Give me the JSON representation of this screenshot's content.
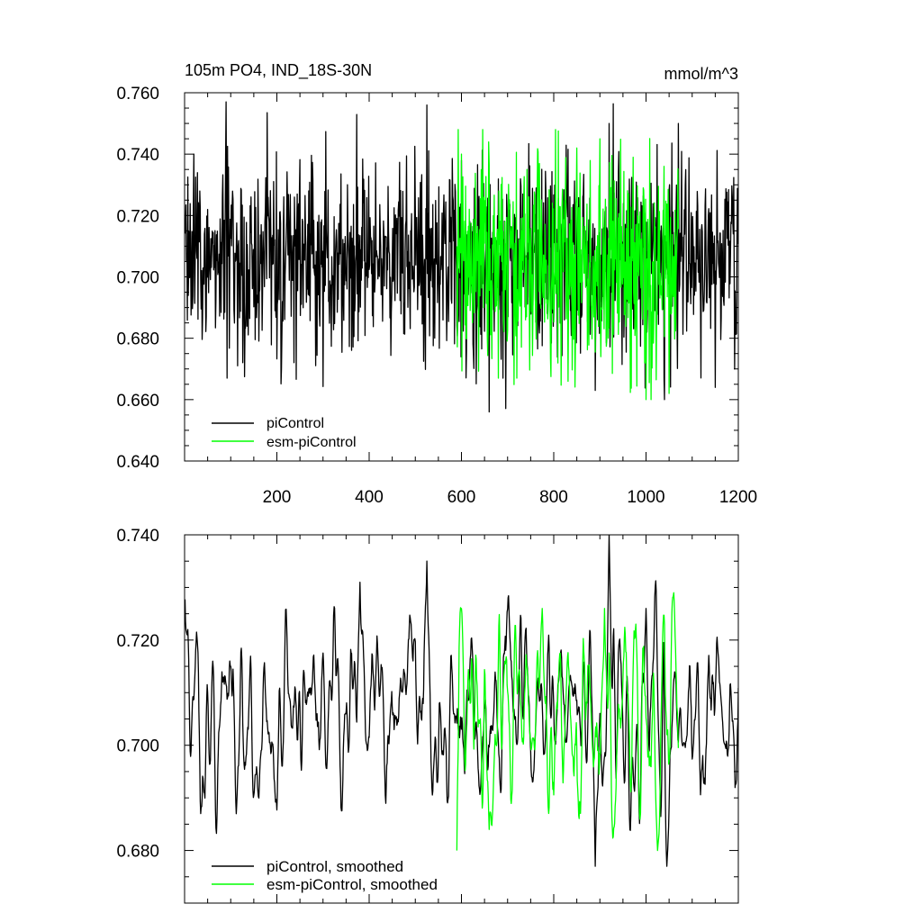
{
  "chart_data": [
    {
      "type": "line",
      "title": "105m PO4, IND_18S-30N",
      "units": "mmol/m^3",
      "xlim": [
        0,
        1200
      ],
      "ylim": [
        0.64,
        0.76
      ],
      "xticks": [
        200,
        400,
        600,
        800,
        1000,
        1200
      ],
      "yticks": [
        0.64,
        0.66,
        0.68,
        0.7,
        0.72,
        0.74,
        0.76
      ],
      "xtick_labels": [
        "200",
        "400",
        "600",
        "800",
        "1000",
        "1200"
      ],
      "ytick_labels": [
        "0.640",
        "0.660",
        "0.680",
        "0.700",
        "0.720",
        "0.740",
        "0.760"
      ],
      "legend_position": "bottom-left",
      "series": [
        {
          "name": "piControl",
          "color": "#000000",
          "x_start": 1,
          "x_end": 1200,
          "mean": 0.706,
          "std": 0.016,
          "min": 0.656,
          "max": 0.757,
          "peaks": [
            [
              90,
              0.757
            ],
            [
              525,
              0.756
            ],
            [
              920,
              0.75
            ],
            [
              1070,
              0.75
            ]
          ],
          "troughs": [
            [
              92,
              0.667
            ],
            [
              115,
              0.671
            ],
            [
              660,
              0.656
            ],
            [
              890,
              0.663
            ],
            [
              1040,
              0.66
            ],
            [
              1150,
              0.664
            ]
          ]
        },
        {
          "name": "esm-piControl",
          "color": "#00ff00",
          "x_start": 590,
          "x_end": 1070,
          "mean": 0.705,
          "std": 0.018,
          "min": 0.66,
          "max": 0.748,
          "peaks": [
            [
              600,
              0.74
            ],
            [
              850,
              0.742
            ],
            [
              900,
              0.745
            ],
            [
              1000,
              0.748
            ]
          ],
          "troughs": [
            [
              680,
              0.667
            ],
            [
              720,
              0.667
            ],
            [
              1000,
              0.66
            ],
            [
              1050,
              0.662
            ]
          ]
        }
      ]
    },
    {
      "type": "line",
      "xlim": [
        0,
        1200
      ],
      "ylim": [
        0.67,
        0.74
      ],
      "xticks": [
        200,
        400,
        600,
        800,
        1000,
        1200
      ],
      "yticks": [
        0.68,
        0.7,
        0.72,
        0.74
      ],
      "ytick_labels": [
        "0.680",
        "0.700",
        "0.720",
        "0.740"
      ],
      "legend_position": "bottom-left",
      "series": [
        {
          "name": "piControl, smoothed",
          "color": "#000000",
          "x_start": 1,
          "x_end": 1200,
          "mean": 0.706,
          "std": 0.0085,
          "min": 0.677,
          "max": 0.74,
          "peaks": [
            [
              380,
              0.731
            ],
            [
              525,
              0.735
            ],
            [
              920,
              0.74
            ],
            [
              1000,
              0.726
            ]
          ],
          "troughs": [
            [
              112,
              0.687
            ],
            [
              890,
              0.677
            ],
            [
              1045,
              0.677
            ]
          ]
        },
        {
          "name": "esm-piControl, smoothed",
          "color": "#00ff00",
          "x_start": 590,
          "x_end": 1070,
          "mean": 0.705,
          "std": 0.0095,
          "min": 0.68,
          "max": 0.729,
          "peaks": [
            [
              600,
              0.726
            ],
            [
              775,
              0.726
            ],
            [
              910,
              0.726
            ],
            [
              1060,
              0.729
            ]
          ],
          "troughs": [
            [
              660,
              0.684
            ],
            [
              1025,
              0.68
            ]
          ]
        }
      ]
    }
  ]
}
